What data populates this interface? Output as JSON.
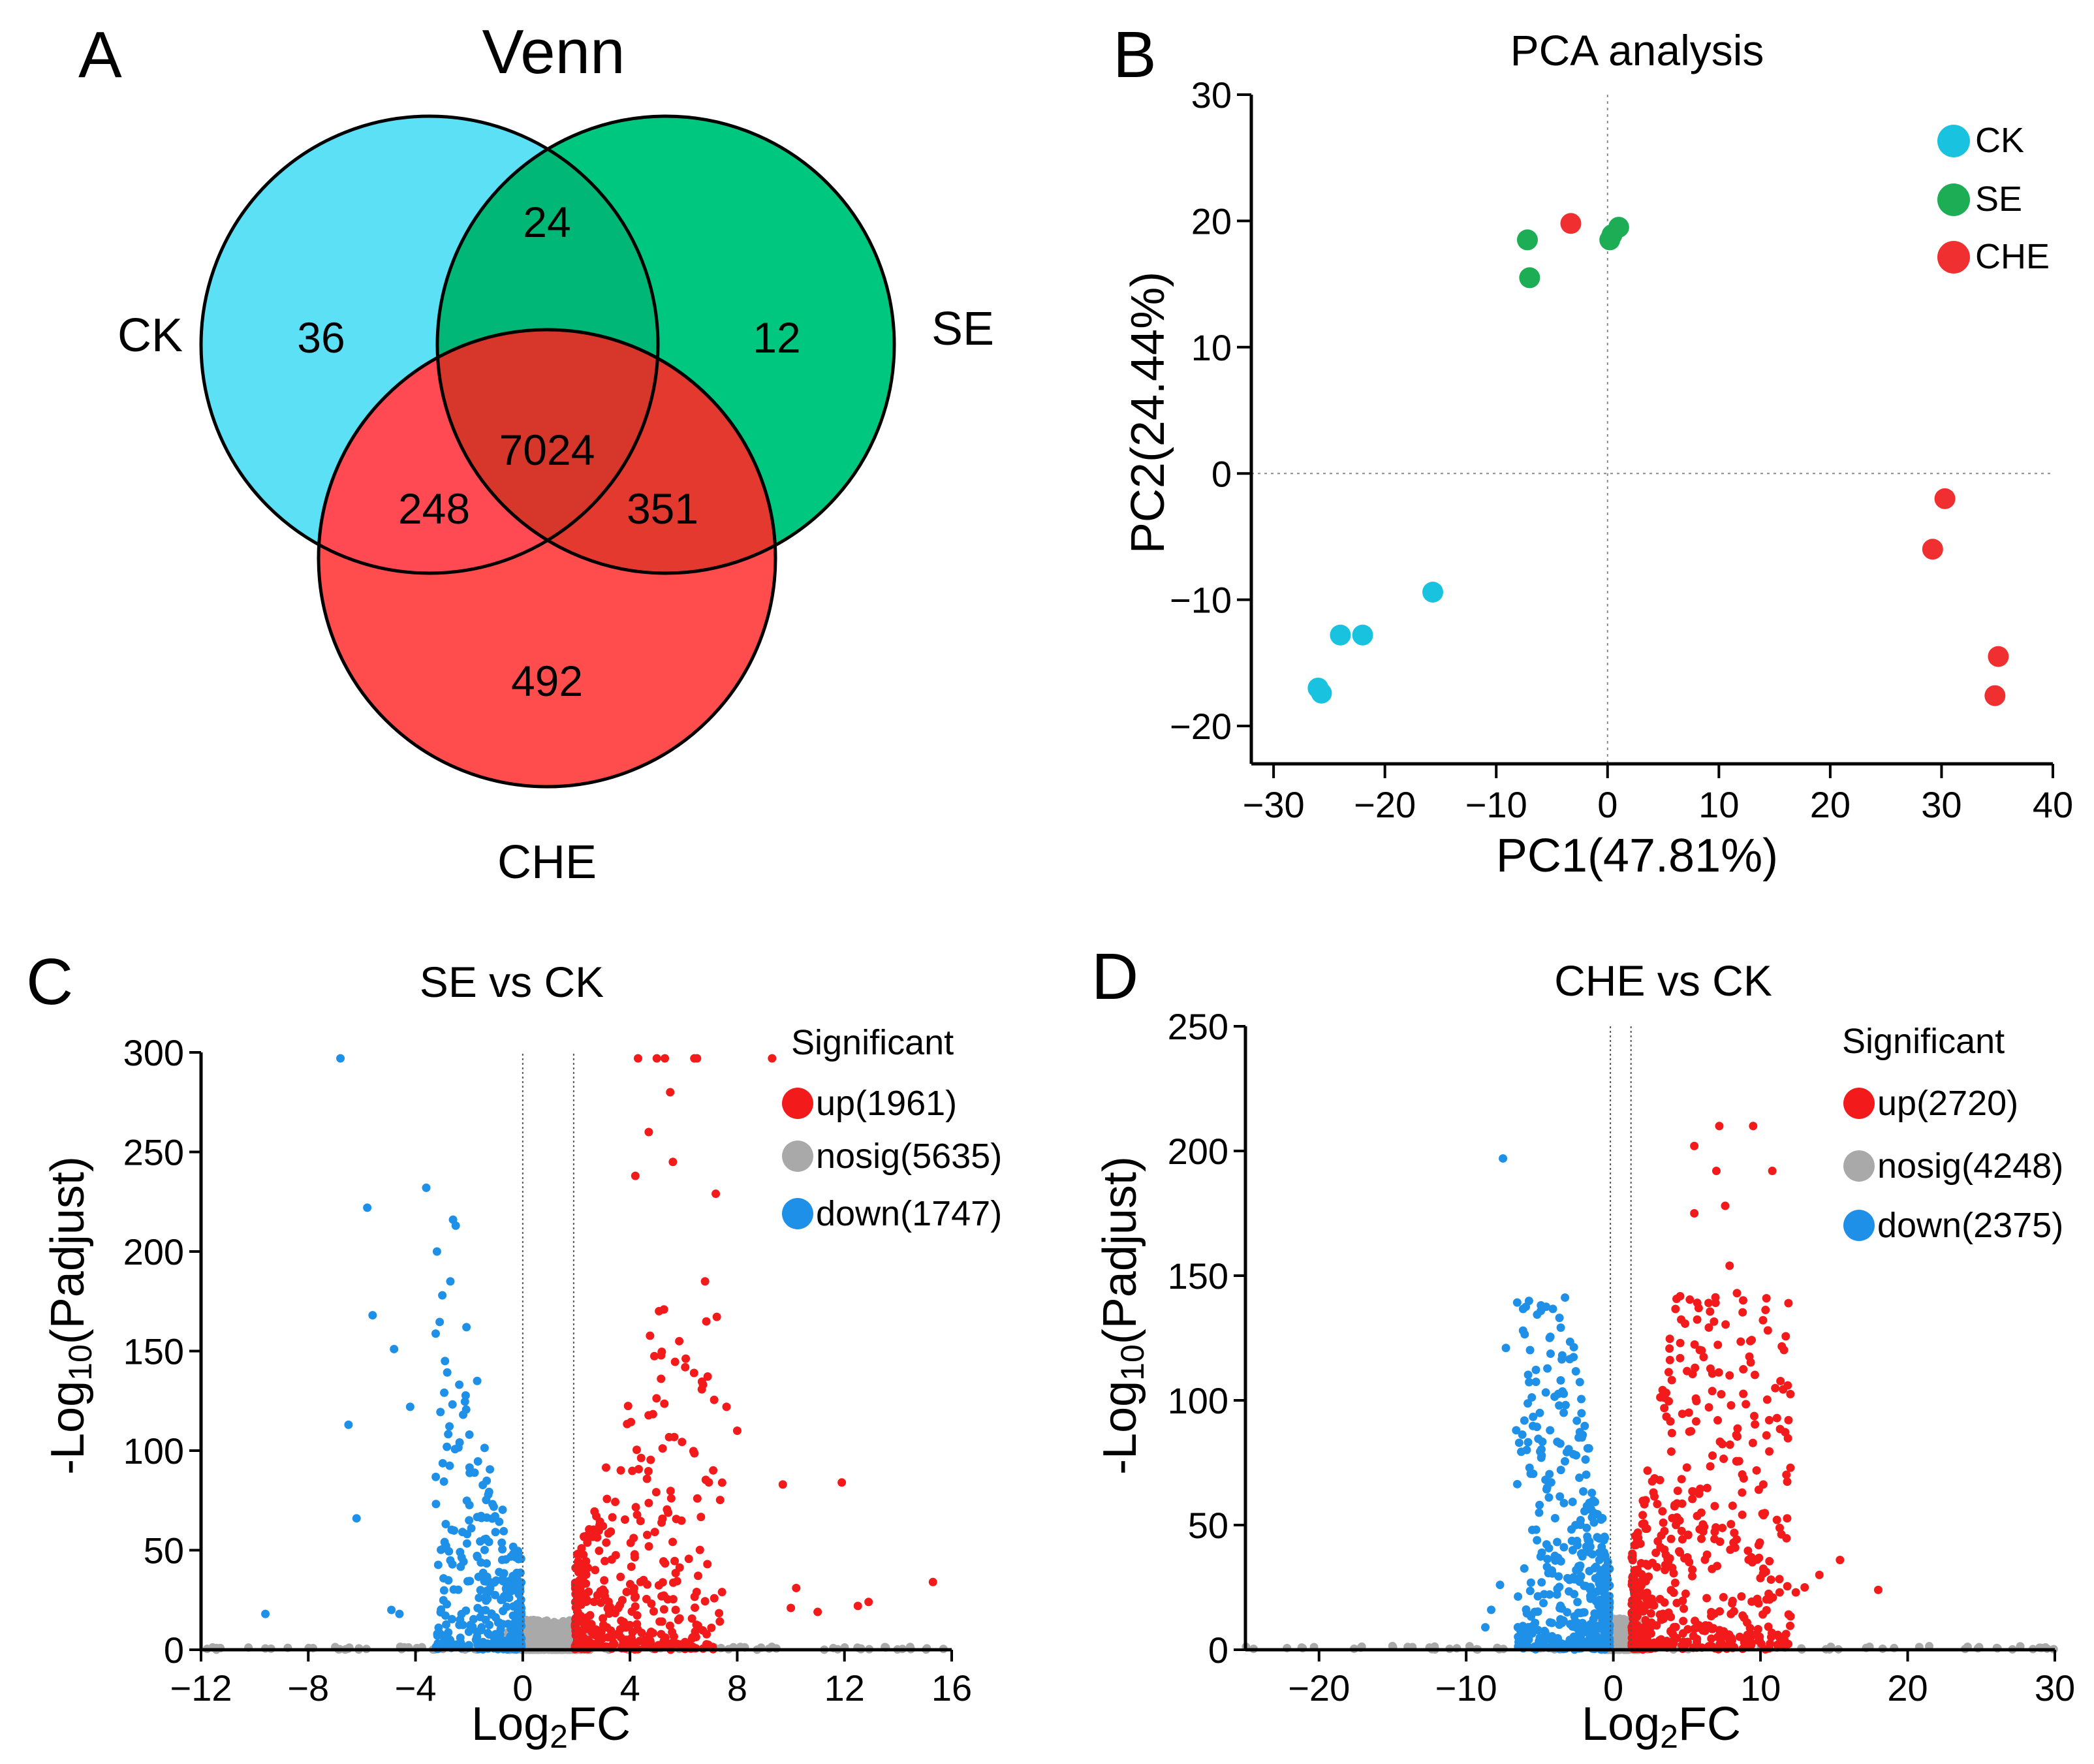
{
  "colors": {
    "ck": "#19C3DF",
    "se": "#1DAE55",
    "che": "#F03030",
    "up": "#F21A1A",
    "down": "#1E90E8",
    "nosig": "#A9A9A9",
    "venn_ck": "#5CE0F5",
    "venn_se": "#00C77F",
    "venn_che": "#FF4C4C",
    "venn_ck_se": "#00B777",
    "venn_ck_che": "#FF4A53",
    "venn_se_che": "#E3392E",
    "venn_all": "#D6372A"
  },
  "panel_labels": {
    "a": "A",
    "b": "B",
    "c": "C",
    "d": "D"
  },
  "chart_data": [
    {
      "type": "venn",
      "title": "Venn",
      "sets": [
        "CK",
        "SE",
        "CHE"
      ],
      "regions": {
        "ck_only": 36,
        "se_only": 12,
        "che_only": 492,
        "ck_se": 24,
        "ck_che": 248,
        "se_che": 351,
        "all": 7024
      },
      "labels": {
        "ck_only": "36",
        "se_only": "12",
        "che_only": "492",
        "ck_se": "24",
        "ck_che": "248",
        "se_che": "351",
        "all": "7024"
      }
    },
    {
      "type": "scatter",
      "title": "PCA analysis",
      "xlabel": "PC1(47.81%)",
      "ylabel": "PC2(24.44%)",
      "xlim": [
        -32,
        40
      ],
      "ylim": [
        -23,
        30
      ],
      "xticks": [
        -30,
        -20,
        -10,
        0,
        10,
        20,
        30,
        40
      ],
      "xtick_labels": [
        "−30",
        "−20",
        "−10",
        "0",
        "10",
        "20",
        "30",
        "40"
      ],
      "yticks": [
        -20,
        -10,
        0,
        10,
        20,
        30
      ],
      "ytick_labels": [
        "−20",
        "−10",
        "0",
        "10",
        "20",
        "30"
      ],
      "legend": "top-right",
      "series": [
        {
          "name": "CK",
          "color_key": "ck",
          "points": [
            [
              -26,
              -17
            ],
            [
              -25.7,
              -17.4
            ],
            [
              -24,
              -12.8
            ],
            [
              -22,
              -12.8
            ],
            [
              -15.7,
              -9.4
            ]
          ]
        },
        {
          "name": "SE",
          "color_key": "se",
          "points": [
            [
              -7.2,
              18.5
            ],
            [
              -7,
              15.5
            ],
            [
              0.2,
              18.5
            ],
            [
              0.4,
              18.9
            ],
            [
              1,
              19.5
            ]
          ]
        },
        {
          "name": "CHE",
          "color_key": "che",
          "points": [
            [
              -3.3,
              19.8
            ],
            [
              29.2,
              -6
            ],
            [
              30.3,
              -2
            ],
            [
              35.1,
              -14.5
            ],
            [
              34.8,
              -17.6
            ]
          ]
        }
      ]
    },
    {
      "type": "scatter",
      "title": "SE vs CK",
      "xlabel_main": "Log",
      "xlabel_sub": "2",
      "xlabel_end": "FC",
      "ylabel_main": "-Log",
      "ylabel_sub": "10",
      "ylabel_end": "(Padjust)",
      "xlim": [
        -12,
        16
      ],
      "ylim": [
        0,
        300
      ],
      "xticks": [
        -12,
        -8,
        -4,
        0,
        4,
        8,
        12,
        16
      ],
      "xtick_labels": [
        "−12",
        "−8",
        "−4",
        "0",
        "4",
        "8",
        "12",
        "16"
      ],
      "yticks": [
        0,
        50,
        100,
        150,
        200,
        250,
        300
      ],
      "ytick_labels": [
        "0",
        "50",
        "100",
        "150",
        "200",
        "250",
        "300"
      ],
      "thresholds": [
        0,
        1.9
      ],
      "legend_title": "Significant",
      "legend": [
        {
          "label": "up(1961)",
          "color_key": "up"
        },
        {
          "label": "nosig(5635)",
          "color_key": "nosig"
        },
        {
          "label": "down(1747)",
          "color_key": "down"
        }
      ],
      "sets": {
        "up": 1961,
        "nosig": 5635,
        "down": 1747
      },
      "outliers": {
        "down": [
          [
            -9.6,
            18
          ],
          [
            -6.8,
            297
          ],
          [
            -6.5,
            113
          ],
          [
            -6.2,
            66
          ],
          [
            -5.8,
            222
          ],
          [
            -5.6,
            168
          ],
          [
            -4.9,
            20
          ],
          [
            -4.6,
            18
          ],
          [
            -4.2,
            122
          ],
          [
            -4.8,
            151
          ],
          [
            -3.6,
            232
          ],
          [
            -3.2,
            200
          ],
          [
            -3.0,
            178
          ],
          [
            -2.6,
            216
          ],
          [
            -2.5,
            213
          ],
          [
            -2.7,
            185
          ],
          [
            -2.1,
            162
          ],
          [
            -2.9,
            145
          ],
          [
            -1.7,
            135
          ]
        ],
        "up": [
          [
            4.3,
            297
          ],
          [
            5,
            297
          ],
          [
            5.3,
            297
          ],
          [
            6.5,
            297
          ],
          [
            6.4,
            297
          ],
          [
            9.3,
            297
          ],
          [
            5.5,
            280
          ],
          [
            4.7,
            260
          ],
          [
            5.6,
            245
          ],
          [
            7.2,
            229
          ],
          [
            4.2,
            238
          ],
          [
            6.8,
            185
          ],
          [
            7.6,
            122
          ],
          [
            8,
            110
          ],
          [
            9.7,
            83
          ],
          [
            11.9,
            84
          ],
          [
            10.2,
            31
          ],
          [
            15.3,
            34
          ],
          [
            12.9,
            24
          ],
          [
            12.5,
            22
          ],
          [
            11,
            19
          ],
          [
            10,
            21
          ]
        ]
      }
    },
    {
      "type": "scatter",
      "title": "CHE vs CK",
      "xlabel_main": "Log",
      "xlabel_sub": "2",
      "xlabel_end": "FC",
      "ylabel_main": "-Log",
      "ylabel_sub": "10",
      "ylabel_end": "(Padjust)",
      "xlim": [
        -25,
        30
      ],
      "ylim": [
        0,
        250
      ],
      "xticks": [
        -20,
        -10,
        0,
        10,
        20,
        30
      ],
      "xtick_labels": [
        "−20",
        "−10",
        "0",
        "10",
        "20",
        "30"
      ],
      "yticks": [
        0,
        50,
        100,
        150,
        200,
        250
      ],
      "ytick_labels": [
        "0",
        "50",
        "100",
        "150",
        "200",
        "250"
      ],
      "thresholds": [
        -0.2,
        1.2
      ],
      "legend_title": "Significant",
      "legend": [
        {
          "label": "up(2720)",
          "color_key": "up"
        },
        {
          "label": "nosig(4248)",
          "color_key": "nosig"
        },
        {
          "label": "down(2375)",
          "color_key": "down"
        }
      ],
      "sets": {
        "up": 2720,
        "nosig": 4248,
        "down": 2375
      },
      "outliers": {
        "down": [
          [
            -7.5,
            197
          ],
          [
            -7.3,
            121
          ],
          [
            -8.3,
            16
          ],
          [
            -8.7,
            9
          ],
          [
            -7.7,
            26
          ],
          [
            -6.6,
            88
          ],
          [
            -6.4,
            83
          ],
          [
            -4.9,
            77
          ],
          [
            -4.3,
            88
          ],
          [
            -4.5,
            65
          ]
        ],
        "up": [
          [
            7.2,
            210
          ],
          [
            9.5,
            210
          ],
          [
            10.8,
            192
          ],
          [
            5.5,
            202
          ],
          [
            7,
            192
          ],
          [
            7.6,
            178
          ],
          [
            8.4,
            143
          ],
          [
            7.9,
            154
          ],
          [
            6,
            120
          ],
          [
            5.5,
            175
          ],
          [
            5.8,
            137
          ],
          [
            7.9,
            110
          ],
          [
            8,
            98
          ],
          [
            12.4,
            23
          ],
          [
            18,
            24
          ],
          [
            15.4,
            36
          ],
          [
            14,
            30
          ],
          [
            13,
            25
          ],
          [
            11.3,
            23
          ]
        ]
      }
    }
  ]
}
